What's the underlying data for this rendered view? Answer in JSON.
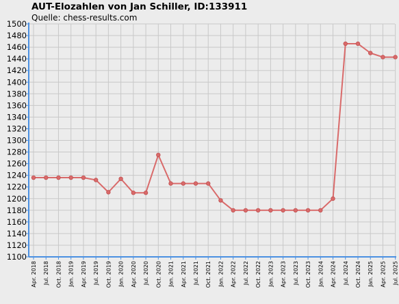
{
  "chart_data": {
    "type": "line",
    "title": "AUT-Elozahlen von Jan Schiller, ID:133911",
    "subtitle": "Quelle: chess-results.com",
    "xlabel": "",
    "ylabel": "",
    "ylim": [
      1100,
      1500
    ],
    "ytick_step": 20,
    "grid": true,
    "categories": [
      "Apr. 2018",
      "Jul. 2018",
      "Oct. 2018",
      "Jan. 2019",
      "Apr. 2019",
      "Jul. 2019",
      "Oct. 2019",
      "Jan. 2020",
      "Apr. 2020",
      "Jul. 2020",
      "Oct. 2020",
      "Jan. 2021",
      "Apr. 2021",
      "Jul. 2021",
      "Oct. 2021",
      "Jan. 2022",
      "Apr. 2022",
      "Jul. 2022",
      "Oct. 2022",
      "Jan. 2023",
      "Apr. 2023",
      "Jul. 2023",
      "Oct. 2023",
      "Jan. 2024",
      "Apr. 2024",
      "Jul. 2024",
      "Oct. 2024",
      "Jan. 2025",
      "Apr. 2025",
      "Jul. 2025"
    ],
    "series": [
      {
        "color": "#d96a6a",
        "values": [
          1236,
          1236,
          1236,
          1236,
          1236,
          1232,
          1211,
          1234,
          1210,
          1210,
          1275,
          1226,
          1226,
          1226,
          1226,
          1197,
          1180,
          1180,
          1180,
          1180,
          1180,
          1180,
          1180,
          1180,
          1200,
          1466,
          1466,
          1450,
          1443,
          1443
        ]
      }
    ],
    "colors": {
      "background": "#ececec",
      "grid": "#c8c8c8",
      "axis": "#4a90e2",
      "line": "#d96a6a"
    }
  }
}
